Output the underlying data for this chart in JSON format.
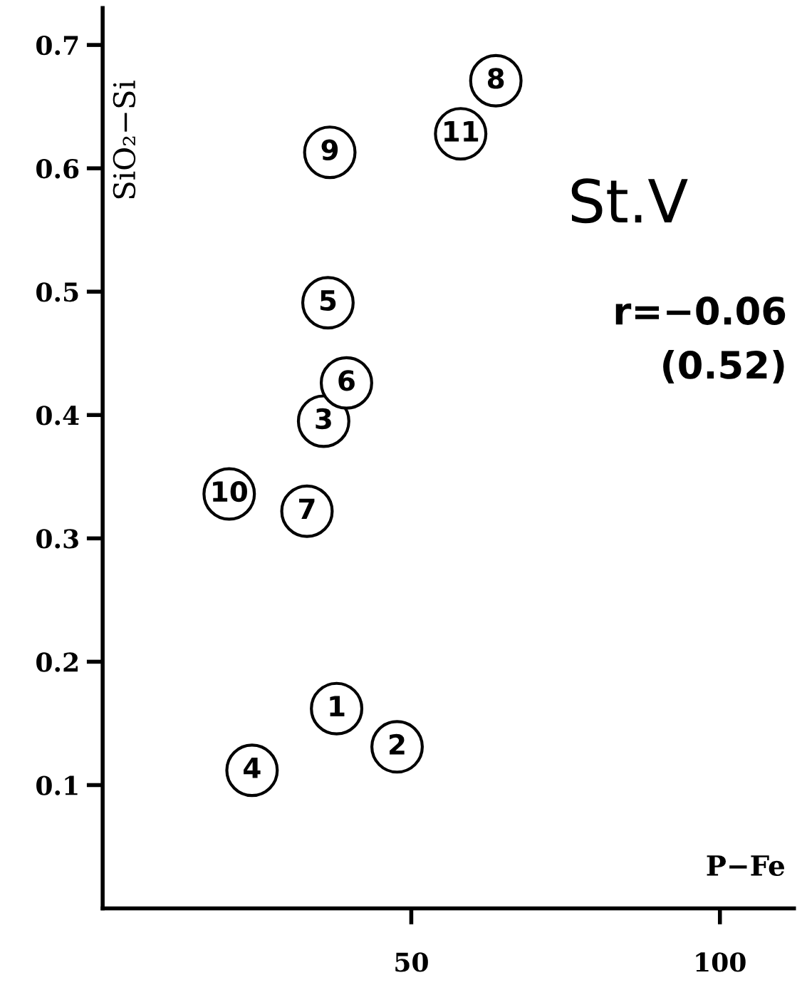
{
  "chart_data": {
    "type": "scatter",
    "xlabel": "P−Fe",
    "ylabel": "SiO₂−Si",
    "x": [
      37.9,
      47.7,
      35.8,
      24.2,
      36.5,
      39.5,
      33.1,
      63.7,
      36.8,
      20.5,
      58.0
    ],
    "values": [
      0.162,
      0.131,
      0.395,
      0.112,
      0.491,
      0.426,
      0.322,
      0.671,
      0.613,
      0.336,
      0.628
    ],
    "color": "#000000",
    "marker": "circle",
    "xlim": [
      0,
      112
    ],
    "ylim": [
      0,
      0.73
    ],
    "xticks": [
      50,
      100
    ],
    "yticks": [
      0.1,
      0.2,
      0.3,
      0.4,
      0.5,
      0.6,
      0.7
    ],
    "grid": false,
    "annotations": [
      "St.V",
      "r=−0.06",
      "(0.52)",
      {
        "text": "1",
        "x": 37.9,
        "y": 0.162
      },
      {
        "text": "2",
        "x": 47.7,
        "y": 0.131
      },
      {
        "text": "3",
        "x": 35.8,
        "y": 0.395
      },
      {
        "text": "4",
        "x": 24.2,
        "y": 0.112
      },
      {
        "text": "5",
        "x": 36.5,
        "y": 0.491
      },
      {
        "text": "6",
        "x": 39.5,
        "y": 0.426
      },
      {
        "text": "7",
        "x": 33.1,
        "y": 0.322
      },
      {
        "text": "8",
        "x": 63.7,
        "y": 0.671
      },
      {
        "text": "9",
        "x": 36.8,
        "y": 0.613
      },
      {
        "text": "10",
        "x": 20.5,
        "y": 0.336
      },
      {
        "text": "11",
        "x": 58.0,
        "y": 0.628
      }
    ]
  }
}
